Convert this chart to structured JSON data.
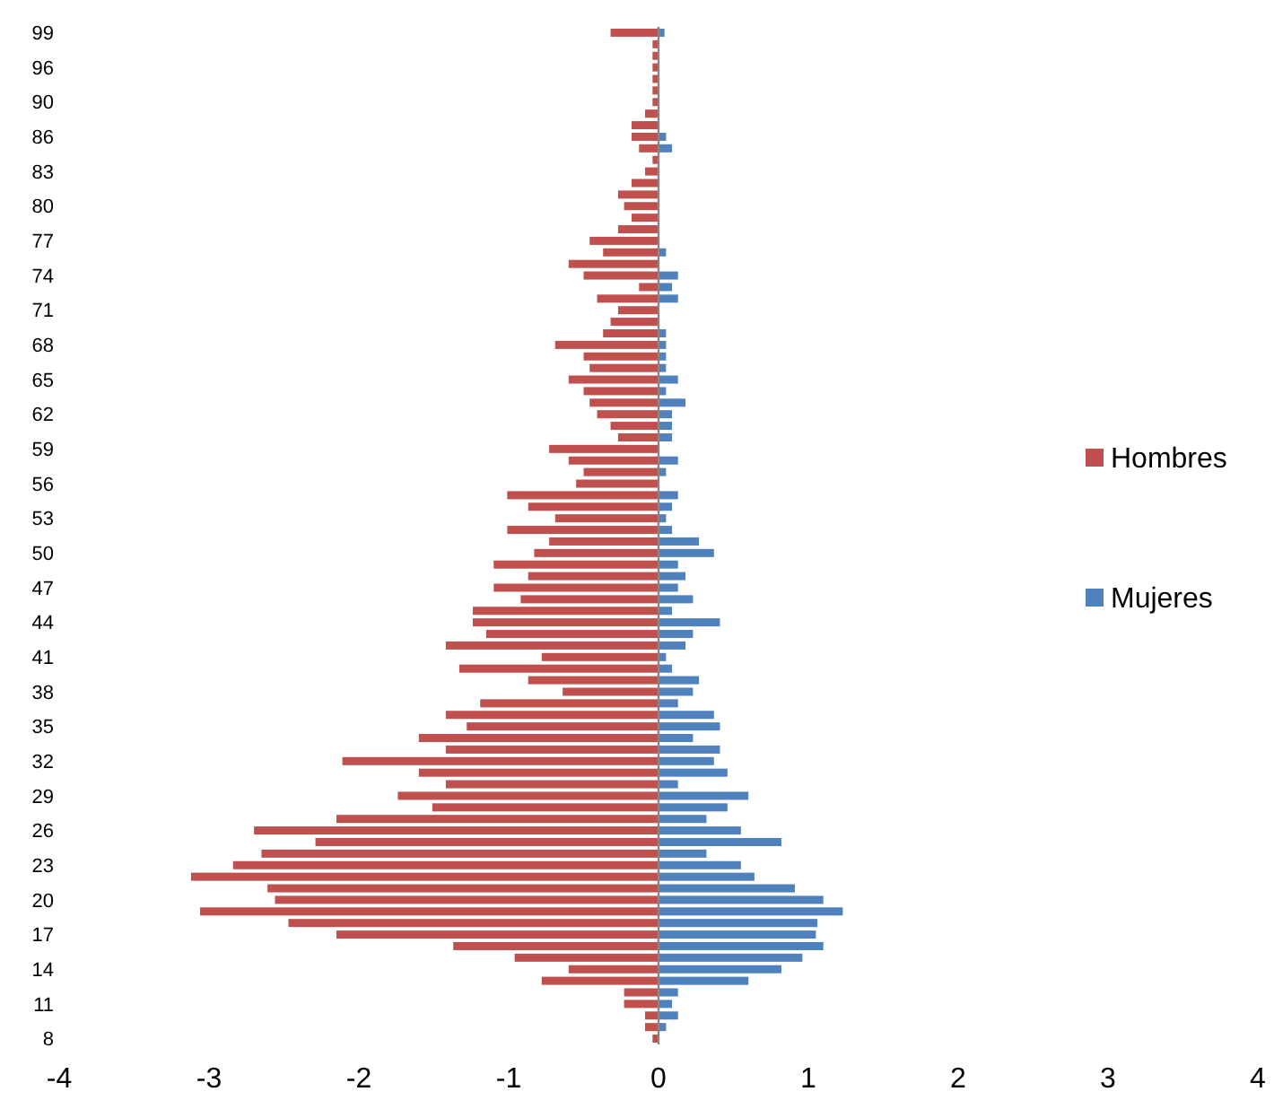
{
  "chart_data": {
    "type": "bar",
    "orientation": "horizontal",
    "stacked": true,
    "legend": "right",
    "categories": [
      "99",
      null,
      null,
      "96",
      null,
      null,
      "90",
      null,
      null,
      "86",
      null,
      null,
      "83",
      null,
      null,
      "80",
      null,
      null,
      "77",
      null,
      null,
      "74",
      null,
      null,
      "71",
      null,
      null,
      "68",
      null,
      null,
      "65",
      null,
      null,
      "62",
      null,
      null,
      "59",
      null,
      null,
      "56",
      null,
      null,
      "53",
      null,
      null,
      "50",
      null,
      null,
      "47",
      null,
      null,
      "44",
      null,
      null,
      "41",
      null,
      null,
      "38",
      null,
      null,
      "35",
      null,
      null,
      "32",
      null,
      null,
      "29",
      null,
      null,
      "26",
      null,
      null,
      "23",
      null,
      null,
      "20",
      null,
      null,
      "17",
      null,
      null,
      "14",
      null,
      null,
      "11",
      null,
      null,
      "8"
    ],
    "xlim": [
      -4,
      4
    ],
    "xticks": [
      -4,
      -3,
      -2,
      -1,
      0,
      1,
      2,
      3,
      4
    ],
    "series": [
      {
        "name": "Hombres",
        "color": "#c0504d",
        "values": [
          -0.32,
          -0.04,
          -0.04,
          -0.04,
          -0.04,
          -0.04,
          -0.04,
          -0.09,
          -0.18,
          -0.18,
          -0.13,
          -0.04,
          -0.09,
          -0.18,
          -0.27,
          -0.23,
          -0.18,
          -0.27,
          -0.46,
          -0.37,
          -0.6,
          -0.5,
          -0.13,
          -0.41,
          -0.27,
          -0.32,
          -0.37,
          -0.69,
          -0.5,
          -0.46,
          -0.6,
          -0.5,
          -0.46,
          -0.41,
          -0.32,
          -0.27,
          -0.73,
          -0.6,
          -0.5,
          -0.55,
          -1.01,
          -0.87,
          -0.69,
          -1.01,
          -0.73,
          -0.83,
          -1.1,
          -0.87,
          -1.1,
          -0.92,
          -1.24,
          -1.24,
          -1.15,
          -1.42,
          -0.78,
          -1.33,
          -0.87,
          -0.64,
          -1.19,
          -1.42,
          -1.28,
          -1.6,
          -1.42,
          -2.11,
          -1.6,
          -1.42,
          -1.74,
          -1.51,
          -2.15,
          -2.7,
          -2.29,
          -2.65,
          -2.84,
          -3.12,
          -2.61,
          -2.56,
          -3.06,
          -2.47,
          -2.15,
          -1.37,
          -0.96,
          -0.6,
          -0.78,
          -0.23,
          -0.23,
          -0.09,
          -0.09,
          -0.04
        ]
      },
      {
        "name": "Mujeres",
        "color": "#4f81bd",
        "values": [
          0.04,
          0,
          0,
          0,
          0,
          0,
          0,
          0,
          0,
          0.05,
          0.09,
          0,
          0,
          0,
          0,
          0,
          0,
          0,
          0,
          0.05,
          0,
          0.13,
          0.09,
          0.13,
          0,
          0,
          0.05,
          0.05,
          0.05,
          0.05,
          0.13,
          0.05,
          0.18,
          0.09,
          0.09,
          0.09,
          0,
          0.13,
          0.05,
          0,
          0.13,
          0.09,
          0.05,
          0.09,
          0.27,
          0.37,
          0.13,
          0.18,
          0.13,
          0.23,
          0.09,
          0.41,
          0.23,
          0.18,
          0.05,
          0.09,
          0.27,
          0.23,
          0.13,
          0.37,
          0.41,
          0.23,
          0.41,
          0.37,
          0.46,
          0.13,
          0.6,
          0.46,
          0.32,
          0.55,
          0.82,
          0.32,
          0.55,
          0.64,
          0.91,
          1.1,
          1.23,
          1.06,
          1.05,
          1.1,
          0.96,
          0.82,
          0.6,
          0.13,
          0.09,
          0.13,
          0.05,
          0
        ]
      }
    ]
  }
}
